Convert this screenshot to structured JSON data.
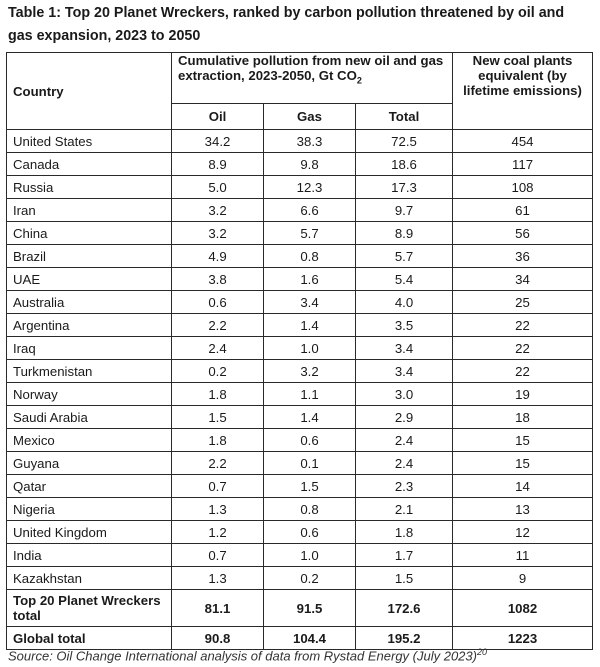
{
  "title": "Table 1: Top 20 Planet Wreckers, ranked by carbon pollution threatened by oil and gas expansion, 2023 to 2050",
  "header": {
    "country": "Country",
    "pollution_group": "Cumulative pollution from new oil and gas extraction, 2023-2050, Gt CO",
    "pollution_group_sub": "2",
    "coal": "New coal plants equivalent (by lifetime emissions)",
    "oil": "Oil",
    "gas": "Gas",
    "total": "Total"
  },
  "rows": [
    {
      "country": "United States",
      "oil": "34.2",
      "gas": "38.3",
      "total": "72.5",
      "coal": "454"
    },
    {
      "country": "Canada",
      "oil": "8.9",
      "gas": "9.8",
      "total": "18.6",
      "coal": "117"
    },
    {
      "country": "Russia",
      "oil": "5.0",
      "gas": "12.3",
      "total": "17.3",
      "coal": "108"
    },
    {
      "country": "Iran",
      "oil": "3.2",
      "gas": "6.6",
      "total": "9.7",
      "coal": "61"
    },
    {
      "country": "China",
      "oil": "3.2",
      "gas": "5.7",
      "total": "8.9",
      "coal": "56"
    },
    {
      "country": "Brazil",
      "oil": "4.9",
      "gas": "0.8",
      "total": "5.7",
      "coal": "36"
    },
    {
      "country": "UAE",
      "oil": "3.8",
      "gas": "1.6",
      "total": "5.4",
      "coal": "34"
    },
    {
      "country": "Australia",
      "oil": "0.6",
      "gas": "3.4",
      "total": "4.0",
      "coal": "25"
    },
    {
      "country": "Argentina",
      "oil": "2.2",
      "gas": "1.4",
      "total": "3.5",
      "coal": "22"
    },
    {
      "country": "Iraq",
      "oil": "2.4",
      "gas": "1.0",
      "total": "3.4",
      "coal": "22"
    },
    {
      "country": "Turkmenistan",
      "oil": "0.2",
      "gas": "3.2",
      "total": "3.4",
      "coal": "22"
    },
    {
      "country": "Norway",
      "oil": "1.8",
      "gas": "1.1",
      "total": "3.0",
      "coal": "19"
    },
    {
      "country": "Saudi Arabia",
      "oil": "1.5",
      "gas": "1.4",
      "total": "2.9",
      "coal": "18"
    },
    {
      "country": "Mexico",
      "oil": "1.8",
      "gas": "0.6",
      "total": "2.4",
      "coal": "15"
    },
    {
      "country": "Guyana",
      "oil": "2.2",
      "gas": "0.1",
      "total": "2.4",
      "coal": "15"
    },
    {
      "country": "Qatar",
      "oil": "0.7",
      "gas": "1.5",
      "total": "2.3",
      "coal": "14"
    },
    {
      "country": "Nigeria",
      "oil": "1.3",
      "gas": "0.8",
      "total": "2.1",
      "coal": "13"
    },
    {
      "country": "United Kingdom",
      "oil": "1.2",
      "gas": "0.6",
      "total": "1.8",
      "coal": "12"
    },
    {
      "country": "India",
      "oil": "0.7",
      "gas": "1.0",
      "total": "1.7",
      "coal": "11"
    },
    {
      "country": "Kazakhstan",
      "oil": "1.3",
      "gas": "0.2",
      "total": "1.5",
      "coal": "9"
    }
  ],
  "top20_total": {
    "label": "Top 20 Planet Wreckers total",
    "oil": "81.1",
    "gas": "91.5",
    "total": "172.6",
    "coal": "1082"
  },
  "global_total": {
    "label": "Global total",
    "oil": "90.8",
    "gas": "104.4",
    "total": "195.2",
    "coal": "1223"
  },
  "source": "Source: Oil Change International analysis of data from Rystad Energy (July 2023)",
  "source_ref": "20"
}
